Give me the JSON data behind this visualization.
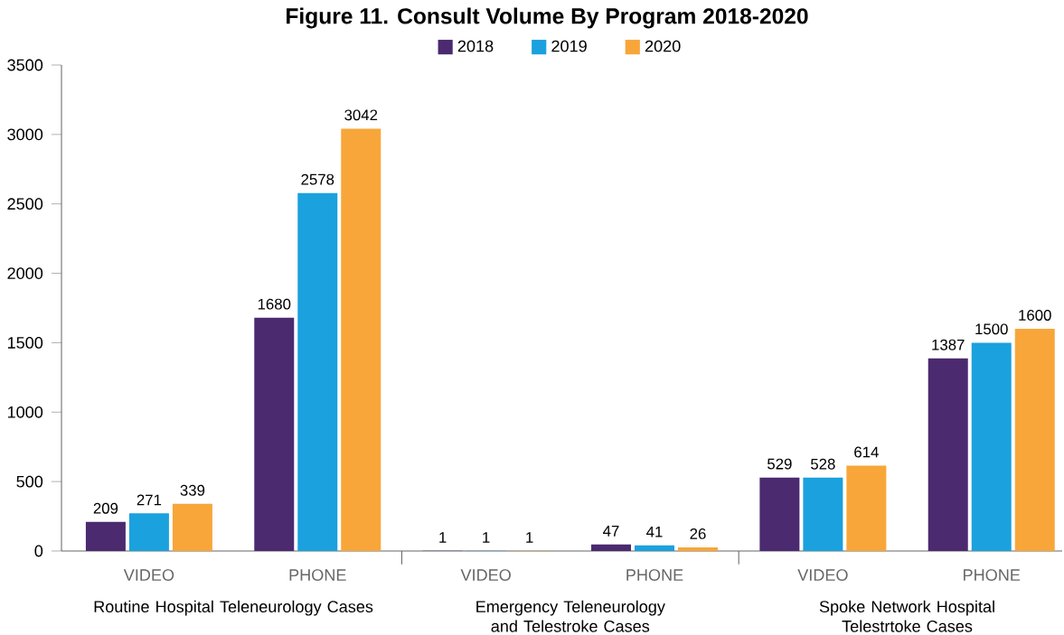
{
  "chart_data": {
    "type": "bar",
    "title": "**Figure 11. Consult Volume By Program 2018-2020**",
    "categories": [
      "VIDEO",
      "PHONE",
      "VIDEO",
      "PHONE",
      "VIDEO",
      "PHONE"
    ],
    "series": [
      {
        "name": "2018",
        "color": "#4b2a6f",
        "values": [
          209,
          1680,
          1,
          47,
          529,
          1387
        ]
      },
      {
        "name": "2019",
        "color": "#1ba1de",
        "values": [
          271,
          2578,
          1,
          41,
          528,
          1500
        ]
      },
      {
        "name": "2020",
        "color": "#f8a63a",
        "values": [
          339,
          3042,
          1,
          26,
          614,
          1600
        ]
      }
    ],
    "ylim": [
      0,
      3500
    ],
    "yticks": [
      0,
      500,
      1000,
      1500,
      2000,
      2500,
      3000,
      3500
    ],
    "data_labels": true,
    "legend": "top",
    "grid": false,
    "annotations": [
      "Routine Hospital Teleneurology Cases",
      "Emergency Teleneurology and Telestroke Cases",
      "Spoke Network Hospital Telestrtoke Cases"
    ]
  }
}
